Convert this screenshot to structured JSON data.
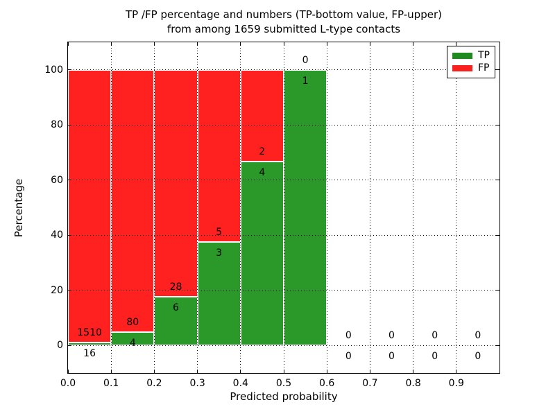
{
  "title": {
    "line1": "TP /FP percentage and numbers (TP-bottom value, FP-upper)",
    "line2": "from among 1659 submitted L-type contacts"
  },
  "axes": {
    "xlabel": "Predicted probability",
    "ylabel": "Percentage"
  },
  "legend": {
    "position": "upper right",
    "entries": [
      {
        "name": "TP",
        "color": "#1f8b1f"
      },
      {
        "name": "FP",
        "color": "#fb2020"
      }
    ]
  },
  "chart_data": {
    "type": "bar",
    "stacked": true,
    "title": "TP /FP percentage and numbers (TP-bottom value, FP-upper) from among 1659 submitted L-type contacts",
    "total_contacts": 1659,
    "xlabel": "Predicted probability",
    "ylabel": "Percentage",
    "xlim": [
      0.0,
      1.0
    ],
    "ylim": [
      -10,
      110
    ],
    "grid": true,
    "x_ticks": [
      0.0,
      0.1,
      0.2,
      0.3,
      0.4,
      0.5,
      0.6,
      0.7,
      0.8,
      0.9
    ],
    "x_tick_labels": [
      "0.0",
      "0.1",
      "0.2",
      "0.3",
      "0.4",
      "0.5",
      "0.6",
      "0.7",
      "0.8",
      "0.9"
    ],
    "y_ticks": [
      0,
      20,
      40,
      60,
      80,
      100
    ],
    "y_tick_labels": [
      "0",
      "20",
      "40",
      "60",
      "80",
      "100"
    ],
    "colors": {
      "tp_fill": "#2a992a",
      "fp_fill": "#ff2020",
      "bar_edge": "#ffffff"
    },
    "bins": [
      {
        "range": [
          0.0,
          0.1
        ],
        "tp": 16,
        "fp": 1510,
        "tp_pct": 1.05,
        "fp_pct": 98.95
      },
      {
        "range": [
          0.1,
          0.2
        ],
        "tp": 4,
        "fp": 80,
        "tp_pct": 4.76,
        "fp_pct": 95.24
      },
      {
        "range": [
          0.2,
          0.3
        ],
        "tp": 6,
        "fp": 28,
        "tp_pct": 17.65,
        "fp_pct": 82.35
      },
      {
        "range": [
          0.3,
          0.4
        ],
        "tp": 3,
        "fp": 5,
        "tp_pct": 37.5,
        "fp_pct": 62.5
      },
      {
        "range": [
          0.4,
          0.5
        ],
        "tp": 4,
        "fp": 2,
        "tp_pct": 66.67,
        "fp_pct": 33.33
      },
      {
        "range": [
          0.5,
          0.6
        ],
        "tp": 1,
        "fp": 0,
        "tp_pct": 100.0,
        "fp_pct": 0.0
      },
      {
        "range": [
          0.6,
          0.7
        ],
        "tp": 0,
        "fp": 0,
        "tp_pct": 0.0,
        "fp_pct": 0.0
      },
      {
        "range": [
          0.7,
          0.8
        ],
        "tp": 0,
        "fp": 0,
        "tp_pct": 0.0,
        "fp_pct": 0.0
      },
      {
        "range": [
          0.8,
          0.9
        ],
        "tp": 0,
        "fp": 0,
        "tp_pct": 0.0,
        "fp_pct": 0.0
      },
      {
        "range": [
          0.9,
          1.0
        ],
        "tp": 0,
        "fp": 0,
        "tp_pct": 0.0,
        "fp_pct": 0.0
      }
    ]
  }
}
